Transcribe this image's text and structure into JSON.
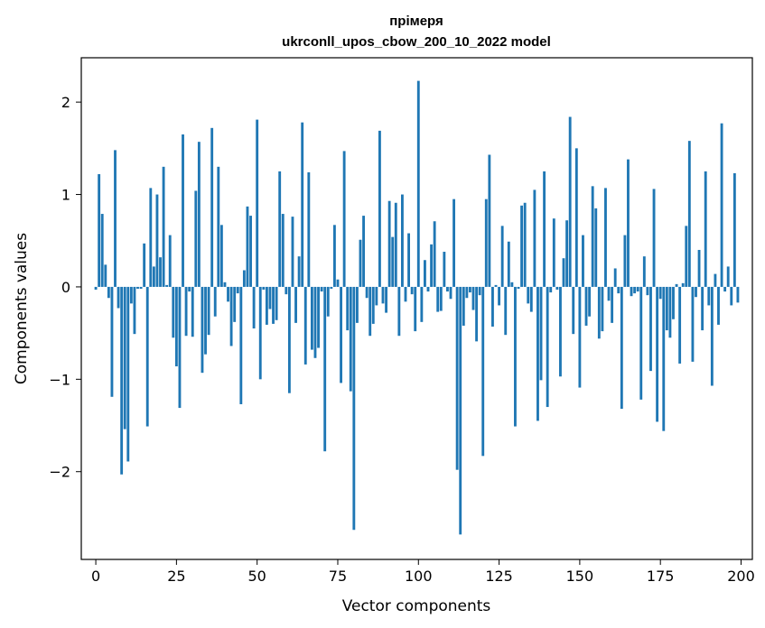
{
  "chart_data": {
    "type": "bar",
    "title_line1": "прімеря",
    "title_line2": "ukrconll_upos_cbow_200_10_2022 model",
    "xlabel": "Vector components",
    "ylabel": "Components values",
    "xlim": [
      -4.5,
      203.5
    ],
    "ylim": [
      -2.95,
      2.48
    ],
    "xticks": [
      0,
      25,
      50,
      75,
      100,
      125,
      150,
      175,
      200
    ],
    "yticks": [
      -2,
      -1,
      0,
      1,
      2
    ],
    "ytick_labels": [
      "−2",
      "−1",
      "0",
      "1",
      "2"
    ],
    "bar_color": "#1f77b4",
    "grid": false,
    "legend": "none",
    "values": [
      -0.03,
      1.22,
      0.79,
      0.24,
      -0.12,
      -1.19,
      1.48,
      -0.23,
      -2.03,
      -1.54,
      -1.89,
      -0.18,
      -0.51,
      -0.02,
      -0.02,
      0.47,
      -1.51,
      1.07,
      0.22,
      1.0,
      0.32,
      1.3,
      0.02,
      0.56,
      -0.55,
      -0.86,
      -1.31,
      1.65,
      -0.53,
      -0.05,
      -0.54,
      1.04,
      1.57,
      -0.93,
      -0.73,
      -0.52,
      1.72,
      -0.32,
      1.3,
      0.67,
      0.05,
      -0.16,
      -0.64,
      -0.38,
      -0.07,
      -1.27,
      0.18,
      0.87,
      0.77,
      -0.45,
      1.81,
      -1.0,
      -0.03,
      -0.41,
      -0.24,
      -0.4,
      -0.36,
      1.25,
      0.79,
      -0.08,
      -1.15,
      0.76,
      -0.39,
      0.33,
      1.78,
      -0.84,
      1.24,
      -0.68,
      -0.77,
      -0.66,
      -0.05,
      -1.78,
      -0.32,
      -0.02,
      0.67,
      0.08,
      -1.04,
      1.47,
      -0.47,
      -1.13,
      -2.63,
      -0.39,
      0.51,
      0.77,
      -0.12,
      -0.53,
      -0.4,
      -0.2,
      1.69,
      -0.18,
      -0.28,
      0.93,
      0.54,
      0.91,
      -0.53,
      1.0,
      -0.16,
      0.58,
      -0.08,
      -0.48,
      2.23,
      -0.38,
      0.29,
      -0.05,
      0.46,
      0.71,
      -0.27,
      -0.26,
      0.38,
      -0.05,
      -0.13,
      0.95,
      -1.98,
      -2.68,
      -0.42,
      -0.12,
      -0.06,
      -0.25,
      -0.59,
      -0.09,
      -1.83,
      0.95,
      1.43,
      -0.43,
      0.02,
      -0.2,
      0.66,
      -0.52,
      0.49,
      0.05,
      -1.51,
      -0.02,
      0.88,
      0.91,
      -0.18,
      -0.27,
      1.05,
      -1.45,
      -1.01,
      1.25,
      -1.3,
      -0.06,
      0.74,
      -0.03,
      -0.97,
      0.31,
      0.72,
      1.84,
      -0.51,
      1.5,
      -1.09,
      0.56,
      -0.42,
      -0.32,
      1.09,
      0.85,
      -0.56,
      -0.48,
      1.07,
      -0.15,
      -0.39,
      0.2,
      -0.07,
      -1.32,
      0.56,
      1.38,
      -0.1,
      -0.07,
      -0.05,
      -1.22,
      0.33,
      -0.09,
      -0.91,
      1.06,
      -1.46,
      -0.13,
      -1.56,
      -0.47,
      -0.55,
      -0.35,
      0.03,
      -0.83,
      0.04,
      0.66,
      1.58,
      -0.81,
      -0.11,
      0.4,
      -0.47,
      1.25,
      -0.2,
      -1.07,
      0.14,
      -0.41,
      1.77,
      -0.05,
      0.22,
      -0.2,
      1.23,
      -0.17
    ]
  }
}
